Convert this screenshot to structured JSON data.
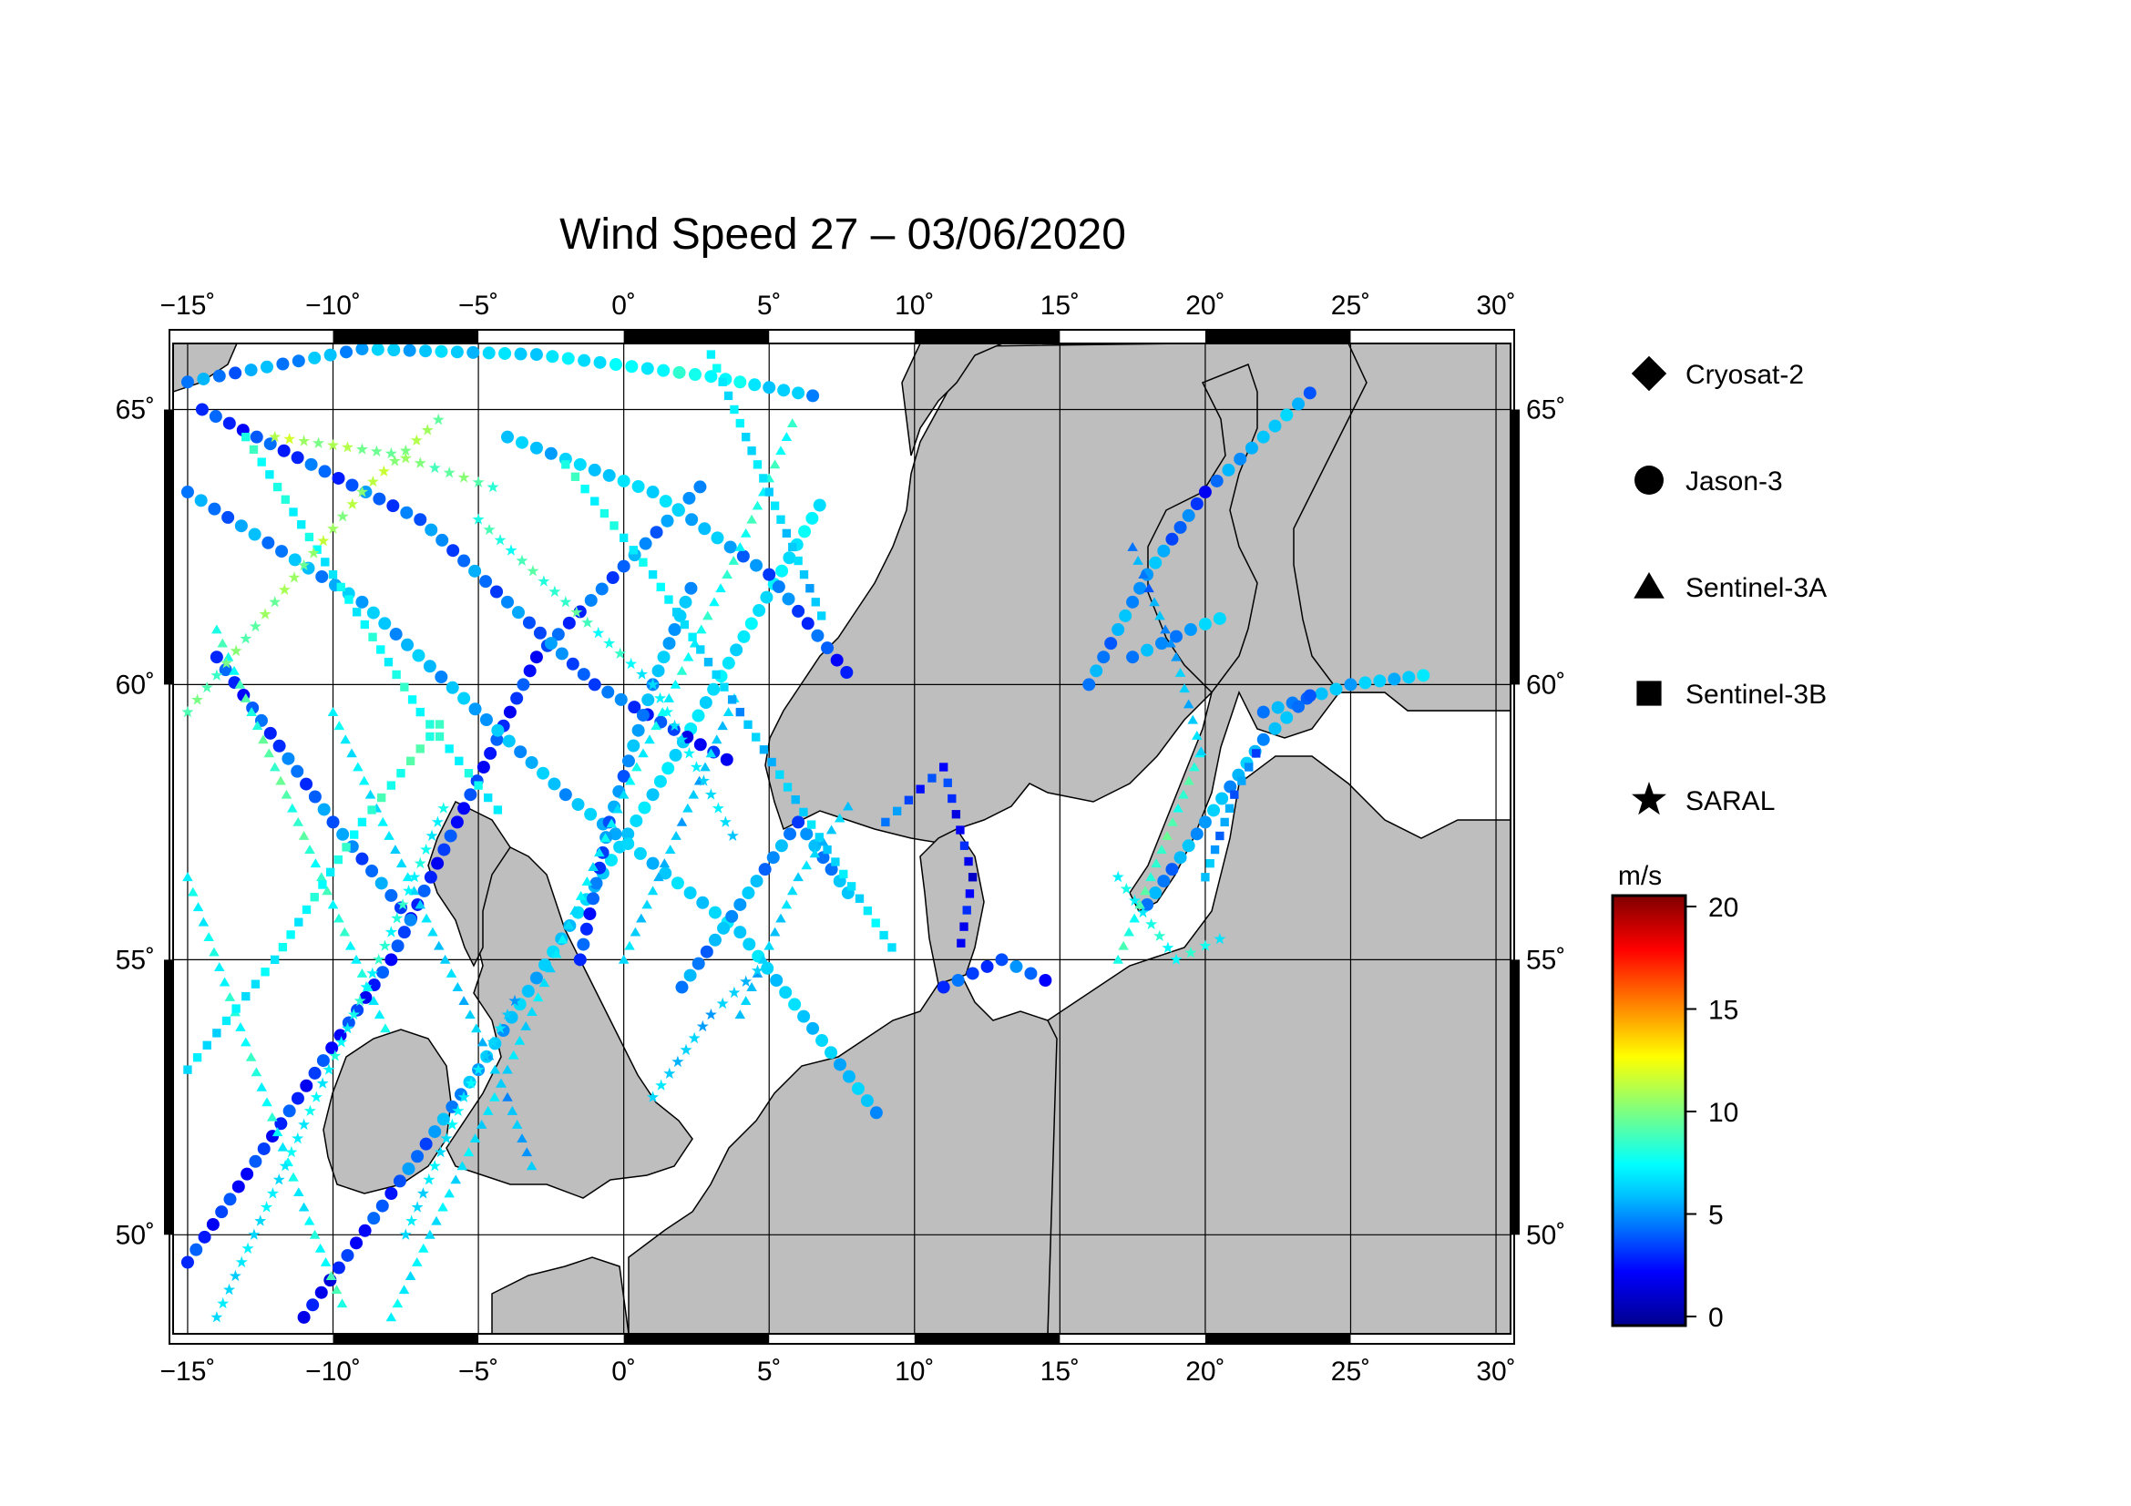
{
  "title": "Wind Speed 27 – 03/06/2020",
  "map": {
    "lon_range": [
      -15.5,
      30.5
    ],
    "lat_range": [
      48.2,
      66.2
    ],
    "lon_ticks": [
      -15,
      -10,
      -5,
      0,
      5,
      10,
      15,
      20,
      25,
      30
    ],
    "lon_tick_labels": [
      "−15˚",
      "−10˚",
      "−5˚",
      "0˚",
      "5˚",
      "10˚",
      "15˚",
      "20˚",
      "25˚",
      "30˚"
    ],
    "lat_ticks": [
      50,
      55,
      60,
      65
    ],
    "lat_tick_labels": [
      "50˚",
      "55˚",
      "60˚",
      "65˚"
    ],
    "land_color": "#bebebe",
    "sea_color": "#ffffff"
  },
  "legend": {
    "satellites": [
      {
        "name": "Cryosat-2",
        "symbol": "diamond-icon"
      },
      {
        "name": "Jason-3",
        "symbol": "circle-icon"
      },
      {
        "name": "Sentinel-3A",
        "symbol": "triangle-icon"
      },
      {
        "name": "Sentinel-3B",
        "symbol": "square-icon"
      },
      {
        "name": "SARAL",
        "symbol": "star-icon"
      }
    ]
  },
  "colorbar": {
    "unit": "m/s",
    "range": [
      0,
      20
    ],
    "tick_values": [
      0,
      5,
      10,
      15,
      20
    ],
    "tick_labels": [
      "0",
      "5",
      "10",
      "15",
      "20"
    ],
    "colors": [
      "#00008f",
      "#0000ff",
      "#00bfff",
      "#00ffff",
      "#7fff7f",
      "#ffff00",
      "#ff7f00",
      "#ff0000",
      "#7f0000"
    ]
  },
  "chart_data": {
    "type": "scatter",
    "x_label": "",
    "y_label": "",
    "tracks": [
      {
        "satellite": "Jason-3",
        "path": [
          [
            -15,
            49.5
          ],
          [
            -8,
            55
          ],
          [
            -3,
            60.5
          ],
          [
            3,
            63.8
          ]
        ],
        "wind": [
          3,
          3,
          3,
          5
        ]
      },
      {
        "satellite": "Jason-3",
        "path": [
          [
            -11,
            48.5
          ],
          [
            -5,
            53
          ],
          [
            1,
            58
          ],
          [
            7,
            63.5
          ]
        ],
        "wind": [
          2,
          5,
          6,
          7
        ]
      },
      {
        "satellite": "Jason-3",
        "path": [
          [
            -14.5,
            65
          ],
          [
            -7,
            63
          ],
          [
            -1,
            60
          ],
          [
            4,
            58.5
          ]
        ],
        "wind": [
          3,
          4,
          4,
          2
        ]
      },
      {
        "satellite": "Jason-3",
        "path": [
          [
            -15,
            63.5
          ],
          [
            -9,
            61.5
          ],
          [
            -2,
            58
          ],
          [
            4,
            55.5
          ],
          [
            9,
            52
          ]
        ],
        "wind": [
          4,
          5,
          5,
          6,
          5
        ]
      },
      {
        "satellite": "Jason-3",
        "path": [
          [
            -15,
            65.5
          ],
          [
            -9,
            66.1
          ],
          [
            -3,
            66
          ],
          [
            3,
            65.6
          ],
          [
            7,
            65.2
          ]
        ],
        "wind": [
          4,
          5,
          6,
          8,
          4
        ]
      },
      {
        "satellite": "Jason-3",
        "path": [
          [
            -14,
            60.5
          ],
          [
            -10,
            57.5
          ],
          [
            -7,
            55.5
          ]
        ],
        "wind": [
          3,
          4,
          4
        ]
      },
      {
        "satellite": "Jason-3",
        "path": [
          [
            -4,
            64.5
          ],
          [
            1,
            63.5
          ],
          [
            5,
            62
          ],
          [
            8,
            60
          ]
        ],
        "wind": [
          5,
          6,
          4,
          3
        ]
      },
      {
        "satellite": "Jason-3",
        "path": [
          [
            -1.5,
            55
          ],
          [
            -0.5,
            57.5
          ],
          [
            1,
            60
          ],
          [
            2.5,
            62
          ]
        ],
        "wind": [
          3,
          4,
          5,
          5
        ]
      },
      {
        "satellite": "Jason-3",
        "path": [
          [
            2,
            54.5
          ],
          [
            4,
            56
          ],
          [
            6,
            57.5
          ],
          [
            8,
            56
          ]
        ],
        "wind": [
          4,
          5,
          4,
          5
        ]
      },
      {
        "satellite": "Jason-3",
        "path": [
          [
            16,
            60
          ],
          [
            18,
            62
          ],
          [
            20,
            63.5
          ],
          [
            22,
            64.5
          ],
          [
            24,
            65.5
          ]
        ],
        "wind": [
          4,
          5,
          3,
          6,
          4
        ]
      },
      {
        "satellite": "Jason-3",
        "path": [
          [
            17.5,
            60.5
          ],
          [
            19.5,
            61
          ],
          [
            21,
            61.3
          ]
        ],
        "wind": [
          4,
          5,
          6
        ]
      },
      {
        "satellite": "Jason-3",
        "path": [
          [
            22,
            59.5
          ],
          [
            25,
            60
          ],
          [
            28,
            60.2
          ]
        ],
        "wind": [
          4,
          5,
          6
        ]
      },
      {
        "satellite": "Jason-3",
        "path": [
          [
            18,
            56
          ],
          [
            20,
            57.5
          ],
          [
            22,
            59
          ],
          [
            24,
            60
          ]
        ],
        "wind": [
          4,
          5,
          5,
          4
        ]
      },
      {
        "satellite": "Jason-3",
        "path": [
          [
            11,
            54.5
          ],
          [
            13,
            55
          ],
          [
            15,
            54.5
          ]
        ],
        "wind": [
          3,
          4,
          3
        ]
      },
      {
        "satellite": "Sentinel-3A",
        "path": [
          [
            -15,
            56.5
          ],
          [
            -13,
            53.5
          ],
          [
            -11,
            50.5
          ],
          [
            -9.5,
            48.5
          ]
        ],
        "wind": [
          7,
          8,
          7,
          9
        ]
      },
      {
        "satellite": "Sentinel-3A",
        "path": [
          [
            -10,
            59.5
          ],
          [
            -7,
            56
          ],
          [
            -4,
            52.5
          ],
          [
            -3,
            51
          ]
        ],
        "wind": [
          7,
          6,
          5,
          5
        ]
      },
      {
        "satellite": "Sentinel-3A",
        "path": [
          [
            -14,
            61
          ],
          [
            -12,
            58.5
          ],
          [
            -10,
            56
          ],
          [
            -8,
            53.5
          ]
        ],
        "wind": [
          8,
          9,
          8,
          7
        ]
      },
      {
        "satellite": "Sentinel-3A",
        "path": [
          [
            -8,
            48.5
          ],
          [
            -4,
            53
          ],
          [
            0,
            58
          ],
          [
            4,
            62.5
          ],
          [
            6,
            65
          ]
        ],
        "wind": [
          7,
          6,
          7,
          8,
          8
        ]
      },
      {
        "satellite": "Sentinel-3A",
        "path": [
          [
            0,
            55
          ],
          [
            2,
            57.5
          ],
          [
            4,
            60
          ]
        ],
        "wind": [
          6,
          5,
          6
        ]
      },
      {
        "satellite": "Sentinel-3A",
        "path": [
          [
            4,
            54
          ],
          [
            6,
            56.5
          ],
          [
            8,
            58
          ]
        ],
        "wind": [
          5,
          6,
          5
        ]
      },
      {
        "satellite": "Sentinel-3A",
        "path": [
          [
            17,
            55
          ],
          [
            18.5,
            57
          ],
          [
            20,
            59
          ]
        ],
        "wind": [
          8,
          9,
          8
        ]
      },
      {
        "satellite": "Sentinel-3A",
        "path": [
          [
            17.5,
            62.5
          ],
          [
            19,
            60.5
          ],
          [
            20,
            58.5
          ]
        ],
        "wind": [
          4,
          5,
          6
        ]
      },
      {
        "satellite": "Sentinel-3B",
        "path": [
          [
            -13,
            64.5
          ],
          [
            -10,
            62
          ],
          [
            -7,
            59.5
          ],
          [
            -4,
            57.5
          ]
        ],
        "wind": [
          8,
          7,
          8,
          7
        ]
      },
      {
        "satellite": "Sentinel-3B",
        "path": [
          [
            -15,
            53
          ],
          [
            -12,
            55
          ],
          [
            -9,
            57.5
          ],
          [
            -6,
            59.5
          ]
        ],
        "wind": [
          6,
          7,
          8,
          9
        ]
      },
      {
        "satellite": "Sentinel-3B",
        "path": [
          [
            -2,
            64
          ],
          [
            1,
            62
          ],
          [
            4,
            59.5
          ],
          [
            7,
            57
          ],
          [
            9.5,
            55
          ]
        ],
        "wind": [
          8,
          7,
          5,
          6,
          7
        ]
      },
      {
        "satellite": "Sentinel-3B",
        "path": [
          [
            3,
            66
          ],
          [
            5,
            63.5
          ],
          [
            7,
            61
          ]
        ],
        "wind": [
          7,
          6,
          5
        ]
      },
      {
        "satellite": "Sentinel-3B",
        "path": [
          [
            9,
            57.5
          ],
          [
            11,
            58.5
          ],
          [
            12,
            56.5
          ],
          [
            11.5,
            55
          ]
        ],
        "wind": [
          4,
          3,
          2,
          3
        ]
      },
      {
        "satellite": "Sentinel-3B",
        "path": [
          [
            20,
            56.5
          ],
          [
            21,
            58
          ],
          [
            22,
            59
          ]
        ],
        "wind": [
          5,
          4,
          4
        ]
      },
      {
        "satellite": "SARAL",
        "path": [
          [
            -15,
            59.5
          ],
          [
            -12,
            61.5
          ],
          [
            -9,
            63.5
          ],
          [
            -6,
            65
          ]
        ],
        "wind": [
          9,
          10,
          11,
          10
        ]
      },
      {
        "satellite": "SARAL",
        "path": [
          [
            -14,
            48.5
          ],
          [
            -11,
            52
          ],
          [
            -8,
            55.5
          ],
          [
            -6,
            58
          ]
        ],
        "wind": [
          6,
          7,
          8,
          7
        ]
      },
      {
        "satellite": "SARAL",
        "path": [
          [
            -5,
            63
          ],
          [
            -2,
            61.5
          ],
          [
            1,
            60
          ],
          [
            4,
            57
          ]
        ],
        "wind": [
          8,
          9,
          7,
          6
        ]
      },
      {
        "satellite": "SARAL",
        "path": [
          [
            -12,
            64.5
          ],
          [
            -8,
            64.2
          ],
          [
            -4,
            63.5
          ]
        ],
        "wind": [
          11,
          10,
          9
        ]
      },
      {
        "satellite": "SARAL",
        "path": [
          [
            -7.5,
            50
          ],
          [
            -5.5,
            52.5
          ],
          [
            -3.5,
            54.5
          ]
        ],
        "wind": [
          6,
          7,
          5
        ]
      },
      {
        "satellite": "SARAL",
        "path": [
          [
            1,
            52.5
          ],
          [
            3,
            54
          ],
          [
            5,
            55
          ]
        ],
        "wind": [
          6,
          5,
          6
        ]
      },
      {
        "satellite": "SARAL",
        "path": [
          [
            17,
            56.5
          ],
          [
            19,
            55
          ],
          [
            21,
            55.5
          ]
        ],
        "wind": [
          7,
          8,
          7
        ]
      }
    ]
  }
}
